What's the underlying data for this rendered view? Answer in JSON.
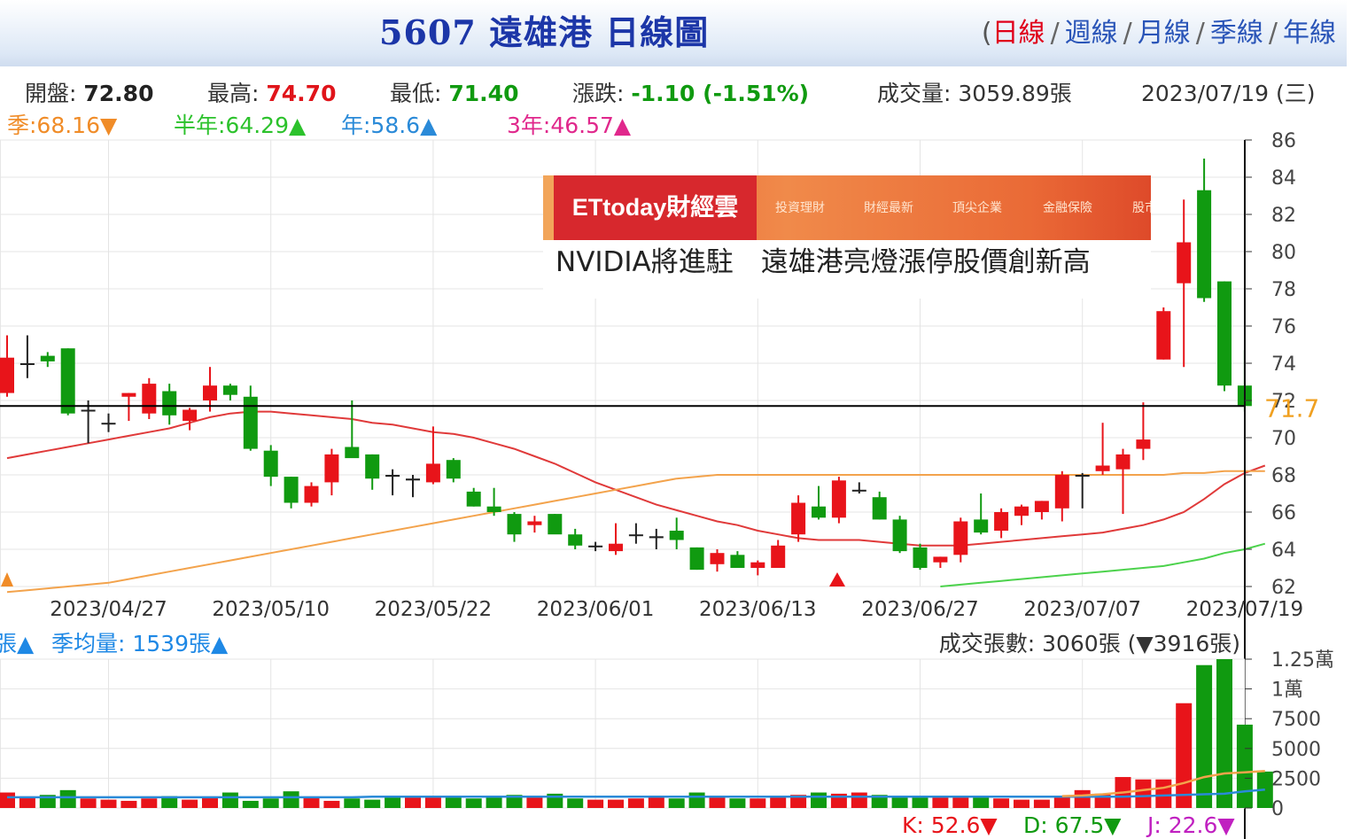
{
  "header": {
    "title": "5607 遠雄港  日線圖",
    "periods": [
      "日線",
      "週線",
      "月線",
      "季線",
      "年線"
    ],
    "active_period": "日線",
    "paren_open": "("
  },
  "stats": {
    "open_label": "開盤:",
    "open_value": "72.80",
    "high_label": "最高:",
    "high_value": "74.70",
    "low_label": "最低:",
    "low_value": "71.40",
    "change_label": "漲跌:",
    "change_value": "-1.10  (-1.51%)",
    "volume_label": "成交量:",
    "volume_value": "3059.89張",
    "date": "2023/07/19 (三)"
  },
  "moving_averages": [
    {
      "label": "季:68.16▼",
      "color": "#f08c28"
    },
    {
      "label": "半年:64.29▲",
      "color": "#2cc22c"
    },
    {
      "label": "年:58.6▲",
      "color": "#2a8ad8"
    },
    {
      "label": "3年:46.57▲",
      "color": "#e0288c"
    }
  ],
  "ad": {
    "logo": "ETtoday財經雲",
    "menu": [
      "投資理財",
      "財經最新",
      "頂尖企業",
      "金融保險",
      "股市"
    ],
    "headline": "NVIDIA將進駐　遠雄港亮燈漲停股價創新高"
  },
  "colors": {
    "up": "#e8141a",
    "down": "#109a10",
    "ma_red": "#e03a3a",
    "ma_orange": "#f3a34c",
    "ma_green": "#4cd24c"
  },
  "chart_data": [
    {
      "type": "candlestick",
      "ylim": [
        62,
        86
      ],
      "y_ticks": [
        "62",
        "64",
        "66",
        "68",
        "70",
        "72",
        "74",
        "76",
        "78",
        "80",
        "82",
        "84",
        "86"
      ],
      "current_price_label": "71.7",
      "current_price": 71.7,
      "date_ticks": [
        {
          "label": "2023/04/27",
          "index": 5
        },
        {
          "label": "2023/05/10",
          "index": 13
        },
        {
          "label": "2023/05/22",
          "index": 21
        },
        {
          "label": "2023/06/01",
          "index": 29
        },
        {
          "label": "2023/06/13",
          "index": 37
        },
        {
          "label": "2023/06/27",
          "index": 45
        },
        {
          "label": "2023/07/07",
          "index": 53
        },
        {
          "label": "2023/07/19",
          "index": 61
        }
      ],
      "candles": [
        {
          "o": 72.4,
          "h": 75.5,
          "l": 72.2,
          "c": 74.3
        },
        {
          "o": 74.0,
          "h": 75.5,
          "l": 73.2,
          "c": 74.0
        },
        {
          "o": 74.4,
          "h": 74.6,
          "l": 73.8,
          "c": 74.1
        },
        {
          "o": 74.8,
          "h": 74.8,
          "l": 71.2,
          "c": 71.3
        },
        {
          "o": 71.5,
          "h": 72.0,
          "l": 69.7,
          "c": 71.5
        },
        {
          "o": 70.8,
          "h": 71.3,
          "l": 70.3,
          "c": 70.8
        },
        {
          "o": 72.2,
          "h": 72.4,
          "l": 70.9,
          "c": 72.4
        },
        {
          "o": 71.3,
          "h": 73.2,
          "l": 71.0,
          "c": 72.9
        },
        {
          "o": 72.5,
          "h": 72.9,
          "l": 70.7,
          "c": 71.2
        },
        {
          "o": 70.9,
          "h": 71.6,
          "l": 70.4,
          "c": 71.5
        },
        {
          "o": 72.0,
          "h": 73.8,
          "l": 71.4,
          "c": 72.8
        },
        {
          "o": 72.8,
          "h": 72.9,
          "l": 72.0,
          "c": 72.3
        },
        {
          "o": 72.2,
          "h": 72.8,
          "l": 69.3,
          "c": 69.4
        },
        {
          "o": 69.3,
          "h": 69.6,
          "l": 67.4,
          "c": 67.9
        },
        {
          "o": 67.9,
          "h": 67.9,
          "l": 66.2,
          "c": 66.5
        },
        {
          "o": 66.5,
          "h": 67.6,
          "l": 66.3,
          "c": 67.4
        },
        {
          "o": 67.6,
          "h": 69.4,
          "l": 66.9,
          "c": 69.1
        },
        {
          "o": 69.5,
          "h": 72.0,
          "l": 69.0,
          "c": 68.9
        },
        {
          "o": 69.1,
          "h": 69.1,
          "l": 67.2,
          "c": 67.8
        },
        {
          "o": 68.0,
          "h": 68.3,
          "l": 66.9,
          "c": 67.9
        },
        {
          "o": 67.7,
          "h": 68.0,
          "l": 66.8,
          "c": 67.8
        },
        {
          "o": 67.6,
          "h": 70.6,
          "l": 67.5,
          "c": 68.6
        },
        {
          "o": 68.8,
          "h": 68.9,
          "l": 67.6,
          "c": 67.8
        },
        {
          "o": 67.1,
          "h": 67.3,
          "l": 66.3,
          "c": 66.3
        },
        {
          "o": 66.3,
          "h": 67.3,
          "l": 65.8,
          "c": 66.0
        },
        {
          "o": 65.9,
          "h": 66.0,
          "l": 64.4,
          "c": 64.8
        },
        {
          "o": 65.3,
          "h": 65.8,
          "l": 64.9,
          "c": 65.5
        },
        {
          "o": 65.9,
          "h": 65.9,
          "l": 64.9,
          "c": 64.8
        },
        {
          "o": 64.8,
          "h": 65.1,
          "l": 64.0,
          "c": 64.2
        },
        {
          "o": 64.2,
          "h": 64.4,
          "l": 63.9,
          "c": 64.2
        },
        {
          "o": 63.9,
          "h": 65.4,
          "l": 63.7,
          "c": 64.3
        },
        {
          "o": 64.8,
          "h": 65.4,
          "l": 64.3,
          "c": 64.8
        },
        {
          "o": 64.6,
          "h": 65.1,
          "l": 64.0,
          "c": 64.7
        },
        {
          "o": 65.0,
          "h": 65.7,
          "l": 64.0,
          "c": 64.5
        },
        {
          "o": 64.1,
          "h": 64.1,
          "l": 62.9,
          "c": 62.9
        },
        {
          "o": 63.2,
          "h": 64.0,
          "l": 62.8,
          "c": 63.8
        },
        {
          "o": 63.7,
          "h": 63.9,
          "l": 63.0,
          "c": 63.0
        },
        {
          "o": 63.0,
          "h": 63.4,
          "l": 62.6,
          "c": 63.3
        },
        {
          "o": 63.0,
          "h": 64.5,
          "l": 63.0,
          "c": 64.2
        },
        {
          "o": 64.8,
          "h": 66.9,
          "l": 64.4,
          "c": 66.5
        },
        {
          "o": 66.3,
          "h": 67.4,
          "l": 65.6,
          "c": 65.7
        },
        {
          "o": 65.7,
          "h": 67.9,
          "l": 65.4,
          "c": 67.7
        },
        {
          "o": 67.2,
          "h": 67.6,
          "l": 67.0,
          "c": 67.2
        },
        {
          "o": 66.8,
          "h": 67.1,
          "l": 65.6,
          "c": 65.6
        },
        {
          "o": 65.6,
          "h": 65.8,
          "l": 63.8,
          "c": 63.9
        },
        {
          "o": 64.1,
          "h": 64.3,
          "l": 62.9,
          "c": 63.0
        },
        {
          "o": 63.3,
          "h": 63.6,
          "l": 63.0,
          "c": 63.6
        },
        {
          "o": 63.7,
          "h": 65.7,
          "l": 63.3,
          "c": 65.5
        },
        {
          "o": 65.6,
          "h": 67.0,
          "l": 64.8,
          "c": 64.9
        },
        {
          "o": 65.0,
          "h": 66.2,
          "l": 64.6,
          "c": 66.0
        },
        {
          "o": 65.8,
          "h": 66.4,
          "l": 65.3,
          "c": 66.3
        },
        {
          "o": 66.0,
          "h": 66.6,
          "l": 65.6,
          "c": 66.6
        },
        {
          "o": 66.2,
          "h": 68.2,
          "l": 65.5,
          "c": 68.0
        },
        {
          "o": 68.0,
          "h": 68.1,
          "l": 66.2,
          "c": 68.0
        },
        {
          "o": 68.2,
          "h": 70.8,
          "l": 68.0,
          "c": 68.5
        },
        {
          "o": 68.3,
          "h": 69.4,
          "l": 65.9,
          "c": 69.1
        },
        {
          "o": 69.4,
          "h": 71.9,
          "l": 68.8,
          "c": 69.9
        },
        {
          "o": 74.2,
          "h": 77.0,
          "l": 74.2,
          "c": 76.8
        },
        {
          "o": 78.3,
          "h": 82.8,
          "l": 73.8,
          "c": 80.5
        },
        {
          "o": 83.3,
          "h": 85.0,
          "l": 77.3,
          "c": 77.5
        },
        {
          "o": 78.4,
          "h": 78.4,
          "l": 72.5,
          "c": 72.8
        },
        {
          "o": 72.8,
          "h": 74.7,
          "l": 71.4,
          "c": 71.7
        }
      ],
      "series": [
        {
          "color_key": "ma_red",
          "values": [
            68.9,
            69.1,
            69.3,
            69.5,
            69.7,
            69.9,
            70.1,
            70.3,
            70.5,
            70.8,
            71.1,
            71.3,
            71.4,
            71.4,
            71.3,
            71.2,
            71.1,
            71.0,
            70.8,
            70.7,
            70.5,
            70.3,
            70.2,
            70.0,
            69.7,
            69.4,
            69.0,
            68.6,
            68.1,
            67.6,
            67.2,
            66.8,
            66.4,
            66.1,
            65.8,
            65.5,
            65.3,
            65.0,
            64.8,
            64.6,
            64.5,
            64.5,
            64.5,
            64.4,
            64.3,
            64.2,
            64.2,
            64.2,
            64.3,
            64.4,
            64.5,
            64.6,
            64.7,
            64.8,
            64.9,
            65.1,
            65.3,
            65.6,
            66.0,
            66.7,
            67.5,
            68.1,
            68.5
          ]
        },
        {
          "color_key": "ma_orange",
          "values": [
            61.7,
            61.8,
            61.9,
            62.0,
            62.1,
            62.2,
            62.4,
            62.6,
            62.8,
            63.0,
            63.2,
            63.4,
            63.6,
            63.8,
            64.0,
            64.2,
            64.4,
            64.6,
            64.8,
            65.0,
            65.2,
            65.4,
            65.6,
            65.8,
            66.0,
            66.2,
            66.4,
            66.6,
            66.8,
            67.0,
            67.2,
            67.4,
            67.6,
            67.8,
            67.9,
            68.0,
            68.0,
            68.0,
            68.0,
            68.0,
            68.0,
            68.0,
            68.0,
            68.0,
            68.0,
            68.0,
            68.0,
            68.0,
            68.0,
            68.0,
            68.0,
            68.0,
            68.0,
            68.0,
            68.0,
            68.0,
            68.0,
            68.0,
            68.1,
            68.1,
            68.2,
            68.2,
            68.2
          ]
        },
        {
          "color_key": "ma_green",
          "values": [
            null,
            null,
            null,
            null,
            null,
            null,
            null,
            null,
            null,
            null,
            null,
            null,
            null,
            null,
            null,
            null,
            null,
            null,
            null,
            null,
            null,
            null,
            null,
            null,
            null,
            null,
            null,
            null,
            null,
            null,
            null,
            null,
            null,
            null,
            null,
            null,
            null,
            null,
            null,
            null,
            null,
            null,
            null,
            null,
            null,
            null,
            62.0,
            62.1,
            62.2,
            62.3,
            62.4,
            62.5,
            62.6,
            62.7,
            62.8,
            62.9,
            63.0,
            63.1,
            63.3,
            63.5,
            63.8,
            64.0,
            64.3
          ]
        }
      ]
    },
    {
      "type": "bar",
      "y_ticks": [
        "0",
        "2500",
        "5000",
        "7500",
        "1萬",
        "1.25萬"
      ],
      "ylim": [
        0,
        12500
      ],
      "volume_labels": {
        "left": "張▲",
        "avg": "季均量: 1539張▲",
        "right": "成交張數: 3060張 (▼3916張)"
      },
      "kdj": {
        "k": "K: 52.6▼",
        "d": "D: 67.5▼",
        "j": "J: 22.6▼"
      },
      "values": [
        1300,
        900,
        1100,
        1500,
        800,
        700,
        600,
        800,
        1000,
        700,
        900,
        1300,
        600,
        800,
        1400,
        900,
        600,
        800,
        700,
        1000,
        900,
        1000,
        900,
        800,
        900,
        1100,
        1000,
        1200,
        800,
        700,
        700,
        800,
        900,
        800,
        1300,
        900,
        800,
        800,
        900,
        1100,
        1300,
        1200,
        1300,
        1100,
        1000,
        1000,
        900,
        900,
        900,
        800,
        700,
        700,
        900,
        1500,
        1200,
        2600,
        2400,
        2400,
        8800,
        12000,
        12500,
        7000,
        3060
      ],
      "avg_line": [
        900,
        900,
        900,
        900,
        900,
        900,
        900,
        900,
        900,
        900,
        900,
        900,
        900,
        900,
        900,
        900,
        900,
        900,
        950,
        950,
        950,
        950,
        950,
        950,
        950,
        950,
        950,
        950,
        950,
        950,
        950,
        950,
        950,
        950,
        950,
        950,
        950,
        950,
        950,
        950,
        950,
        950,
        950,
        950,
        950,
        950,
        950,
        950,
        950,
        950,
        950,
        950,
        950,
        950,
        950,
        950,
        1000,
        1050,
        1100,
        1150,
        1200,
        1400,
        1540
      ],
      "ma_line": [
        null,
        null,
        null,
        null,
        null,
        null,
        null,
        null,
        null,
        null,
        null,
        null,
        null,
        null,
        null,
        null,
        null,
        null,
        null,
        null,
        null,
        null,
        null,
        null,
        null,
        null,
        null,
        null,
        null,
        null,
        null,
        null,
        null,
        null,
        null,
        null,
        null,
        null,
        null,
        null,
        null,
        null,
        null,
        null,
        null,
        null,
        null,
        null,
        null,
        null,
        null,
        null,
        1000,
        1050,
        1150,
        1300,
        1500,
        1700,
        2100,
        2600,
        2900,
        3000,
        3100
      ]
    }
  ]
}
